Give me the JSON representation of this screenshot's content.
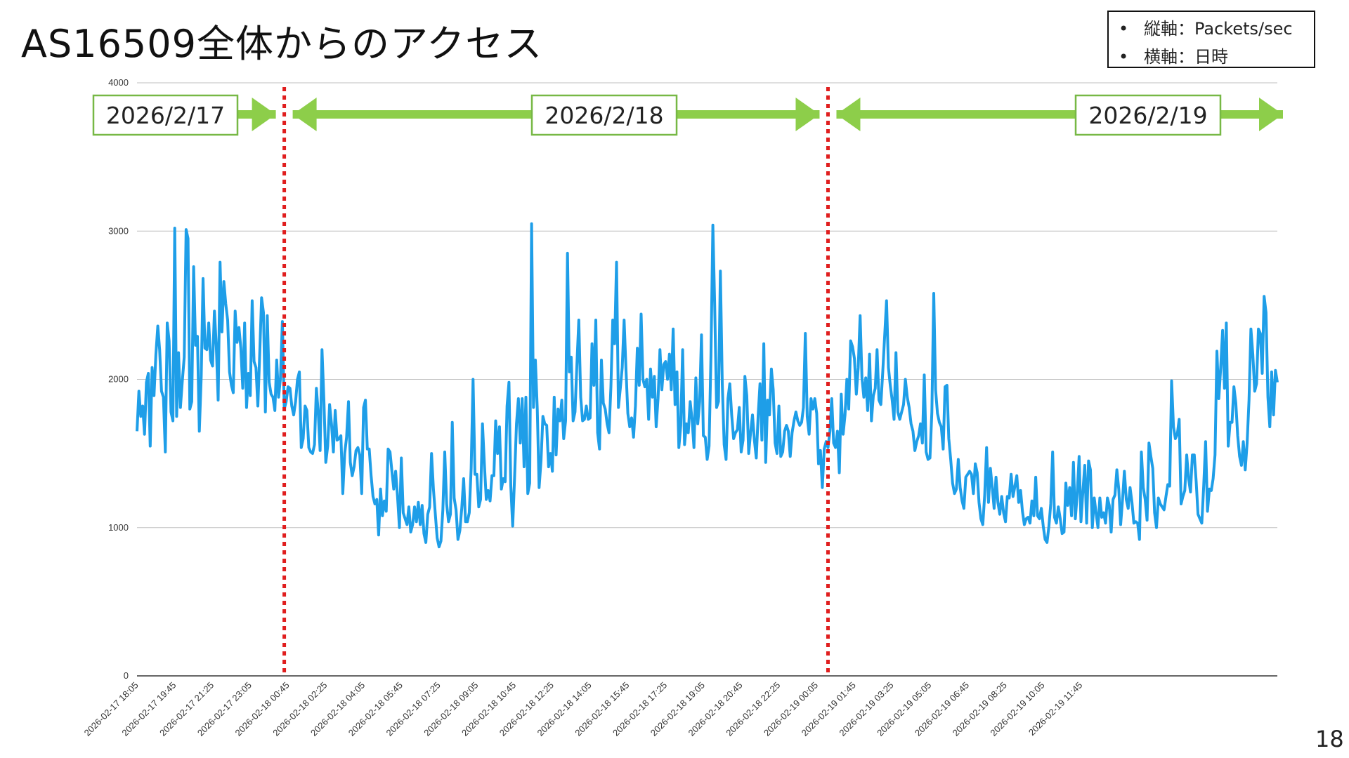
{
  "slide": {
    "title": "AS16509全体からのアクセス",
    "page_number": "18"
  },
  "legend": {
    "bullet": "•",
    "items": [
      "縦軸：Packets/sec",
      "横軸：日時"
    ]
  },
  "colors": {
    "line": "#1e9ee8",
    "arrow": "#8dce4a",
    "date_box_border": "#77b845",
    "divider": "#e01e1e",
    "grid": "#bfbfbf",
    "axis": "#333333"
  },
  "date_spans": [
    {
      "label": "2026/2/17",
      "from": -1,
      "to": 78
    },
    {
      "label": "2026/2/18",
      "from": 78,
      "to": 366
    },
    {
      "label": "2026/2/19",
      "from": 366,
      "to": 530
    }
  ],
  "chart_data": {
    "type": "line",
    "title": "",
    "xlabel": "",
    "ylabel": "",
    "ylim": [
      0,
      4000
    ],
    "y_ticks": [
      "0",
      "1000",
      "2000",
      "3000",
      "4000"
    ],
    "interval_minutes": 5,
    "dividers": [
      "2026-02-18 00:00",
      "2026-02-19 00:00"
    ],
    "x_tick_labels": [
      "2026-02-17 18:05",
      "2026-02-17 19:45",
      "2026-02-17 21:25",
      "2026-02-17 23:05",
      "2026-02-18 00:45",
      "2026-02-18 02:25",
      "2026-02-18 04:05",
      "2026-02-18 05:45",
      "2026-02-18 07:25",
      "2026-02-18 09:05",
      "2026-02-18 10:45",
      "2026-02-18 12:25",
      "2026-02-18 14:05",
      "2026-02-18 15:45",
      "2026-02-18 17:25",
      "2026-02-18 19:05",
      "2026-02-18 20:45",
      "2026-02-18 22:25",
      "2026-02-19 00:05",
      "2026-02-19 01:45",
      "2026-02-19 03:25",
      "2026-02-19 05:05",
      "2026-02-19 06:45",
      "2026-02-19 08:25",
      "2026-02-19 10:05",
      "2026-02-19 11:45"
    ],
    "series": [
      {
        "values": [
          1650,
          1920,
          1750,
          1820,
          1630,
          1980,
          2040,
          1550,
          2080,
          1890,
          2170,
          2360,
          2200,
          1920,
          1880,
          1510,
          2380,
          2260,
          1780,
          1720,
          3020,
          1750,
          2180,
          1810,
          1990,
          2150,
          3010,
          2950,
          1800,
          1850,
          2760,
          2230,
          2290,
          1650,
          2020,
          2680,
          2210,
          2200,
          2380,
          2130,
          2090,
          2460,
          2220,
          1860,
          2790,
          2320,
          2660,
          2510,
          2400,
          2050,
          1960,
          1910,
          2460,
          2250,
          2350,
          2210,
          1940,
          2380,
          1810,
          2040,
          1890,
          2530,
          2120,
          2080,
          1820,
          2180,
          2550,
          2450,
          1780,
          2430,
          1980,
          1900,
          1880,
          1790,
          2130,
          1880,
          2010,
          2390,
          1800,
          1850,
          1950,
          1940,
          1820,
          1760,
          1850,
          2000,
          2050,
          1540,
          1600,
          1820,
          1790,
          1540,
          1510,
          1500,
          1560,
          1940,
          1770,
          1520,
          2200,
          1860,
          1440,
          1550,
          1830,
          1700,
          1510,
          1790,
          1590,
          1600,
          1620,
          1230,
          1500,
          1610,
          1850,
          1440,
          1350,
          1410,
          1520,
          1540,
          1490,
          1230,
          1810,
          1860,
          1530,
          1530,
          1350,
          1210,
          1160,
          1190,
          950,
          1260,
          1080,
          1180,
          1110,
          1530,
          1510,
          1380,
          1260,
          1380,
          1210,
          1000,
          1470,
          1100,
          1060,
          1020,
          1140,
          970,
          1020,
          1140,
          1040,
          1170,
          1020,
          1150,
          960,
          900,
          1090,
          1140,
          1500,
          1260,
          1090,
          930,
          870,
          910,
          1120,
          1510,
          1160,
          1040,
          1090,
          1710,
          1200,
          1120,
          920,
          980,
          1130,
          1330,
          1040,
          1040,
          1100,
          1400,
          2000,
          1360,
          1360,
          1140,
          1190,
          1700,
          1430,
          1190,
          1250,
          1180,
          1350,
          1350,
          1720,
          1500,
          1680,
          1260,
          1330,
          1310,
          1820,
          1980,
          1280,
          1010,
          1340,
          1700,
          1870,
          1570,
          1870,
          1410,
          1880,
          1230,
          1300,
          3050,
          1810,
          2130,
          1800,
          1270,
          1450,
          1750,
          1700,
          1690,
          1410,
          1500,
          1380,
          1880,
          1490,
          1800,
          1720,
          1860,
          1600,
          1720,
          2850,
          2050,
          2150,
          1720,
          1780,
          2100,
          2400,
          1880,
          1720,
          1730,
          1820,
          1730,
          1740,
          2240,
          1960,
          2400,
          1640,
          1530,
          2130,
          1840,
          1800,
          1700,
          1640,
          1950,
          2400,
          2240,
          2790,
          1810,
          1940,
          2080,
          2400,
          2060,
          1770,
          1680,
          1740,
          1610,
          1820,
          2210,
          1960,
          2440,
          2000,
          1950,
          2000,
          1730,
          2070,
          1880,
          2020,
          1680,
          1870,
          2200,
          1930,
          2100,
          2120,
          2000,
          2170,
          1930,
          2340,
          1830,
          2050,
          1540,
          1690,
          2200,
          1560,
          1700,
          1640,
          1850,
          1730,
          1540,
          2010,
          1700,
          1850,
          2300,
          1620,
          1610,
          1460,
          1550,
          2160,
          3040,
          2500,
          1810,
          1850,
          2730,
          1970,
          1560,
          1460,
          1870,
          1970,
          1760,
          1600,
          1640,
          1660,
          1810,
          1510,
          1590,
          2020,
          1890,
          1500,
          1640,
          1760,
          1590,
          1470,
          1760,
          1970,
          1590,
          2240,
          1440,
          1860,
          1760,
          2070,
          1930,
          1570,
          1500,
          1820,
          1480,
          1510,
          1650,
          1690,
          1650,
          1480,
          1640,
          1720,
          1780,
          1720,
          1690,
          1710,
          1810,
          2310,
          1750,
          1630,
          1870,
          1800,
          1870,
          1770,
          1430,
          1520,
          1270,
          1530,
          1580,
          1540,
          1650,
          1870,
          1570,
          1540,
          1650,
          1370,
          1900,
          1630,
          1760,
          2000,
          1800,
          2260,
          2220,
          2140,
          1900,
          2080,
          2430,
          2010,
          1880,
          2010,
          1790,
          2170,
          1720,
          1890,
          1940,
          2200,
          1860,
          1830,
          2050,
          2290,
          2530,
          2080,
          1960,
          1860,
          1730,
          2180,
          1780,
          1730,
          1780,
          1830,
          2000,
          1880,
          1810,
          1700,
          1650,
          1520,
          1580,
          1620,
          1700,
          1570,
          2030,
          1510,
          1460,
          1470,
          1780,
          2580,
          1930,
          1770,
          1710,
          1680,
          1530,
          1950,
          1960,
          1600,
          1460,
          1300,
          1230,
          1260,
          1460,
          1270,
          1180,
          1130,
          1340,
          1360,
          1380,
          1360,
          1230,
          1430,
          1370,
          1170,
          1060,
          1020,
          1220,
          1540,
          1170,
          1400,
          1270,
          1130,
          1340,
          1170,
          1090,
          1210,
          1100,
          1040,
          1210,
          1200,
          1360,
          1210,
          1280,
          1350,
          1170,
          1250,
          1110,
          1020,
          1060,
          1070,
          1030,
          1180,
          1080,
          1340,
          1080,
          1060,
          1130,
          1010,
          920,
          900,
          1010,
          1160,
          1510,
          1070,
          1030,
          1140,
          1060,
          960,
          970,
          1300,
          1150,
          1270,
          1080,
          1440,
          1060,
          1230,
          1480,
          1040,
          1240,
          1420,
          1030,
          1450,
          1390,
          1000,
          1200,
          1100,
          1000,
          1200,
          1070,
          1100,
          1030,
          1200,
          1150,
          970,
          1190,
          1220,
          1390,
          1260,
          1020,
          1190,
          1380,
          1190,
          1130,
          1270,
          1170,
          1030,
          1040,
          1030,
          920,
          1510,
          1270,
          1190,
          1050,
          1570,
          1480,
          1400,
          1100,
          1000,
          1200,
          1160,
          1140,
          1120,
          1210,
          1290,
          1280,
          1990,
          1680,
          1600,
          1630,
          1730,
          1160,
          1210,
          1250,
          1490,
          1330,
          1240,
          1490,
          1490,
          1310,
          1090,
          1060,
          1030,
          1280,
          1580,
          1110,
          1260,
          1250,
          1330,
          1490,
          2190,
          1870,
          2080,
          2330,
          1940,
          2380,
          1550,
          1710,
          1710,
          1950,
          1840,
          1620,
          1480,
          1420,
          1580,
          1390,
          1570,
          1860,
          2340,
          2170,
          1920,
          1970,
          2340,
          2310,
          2040,
          2560,
          2450,
          1880,
          1680,
          2050,
          1760,
          2060,
          1980
        ]
      }
    ]
  }
}
